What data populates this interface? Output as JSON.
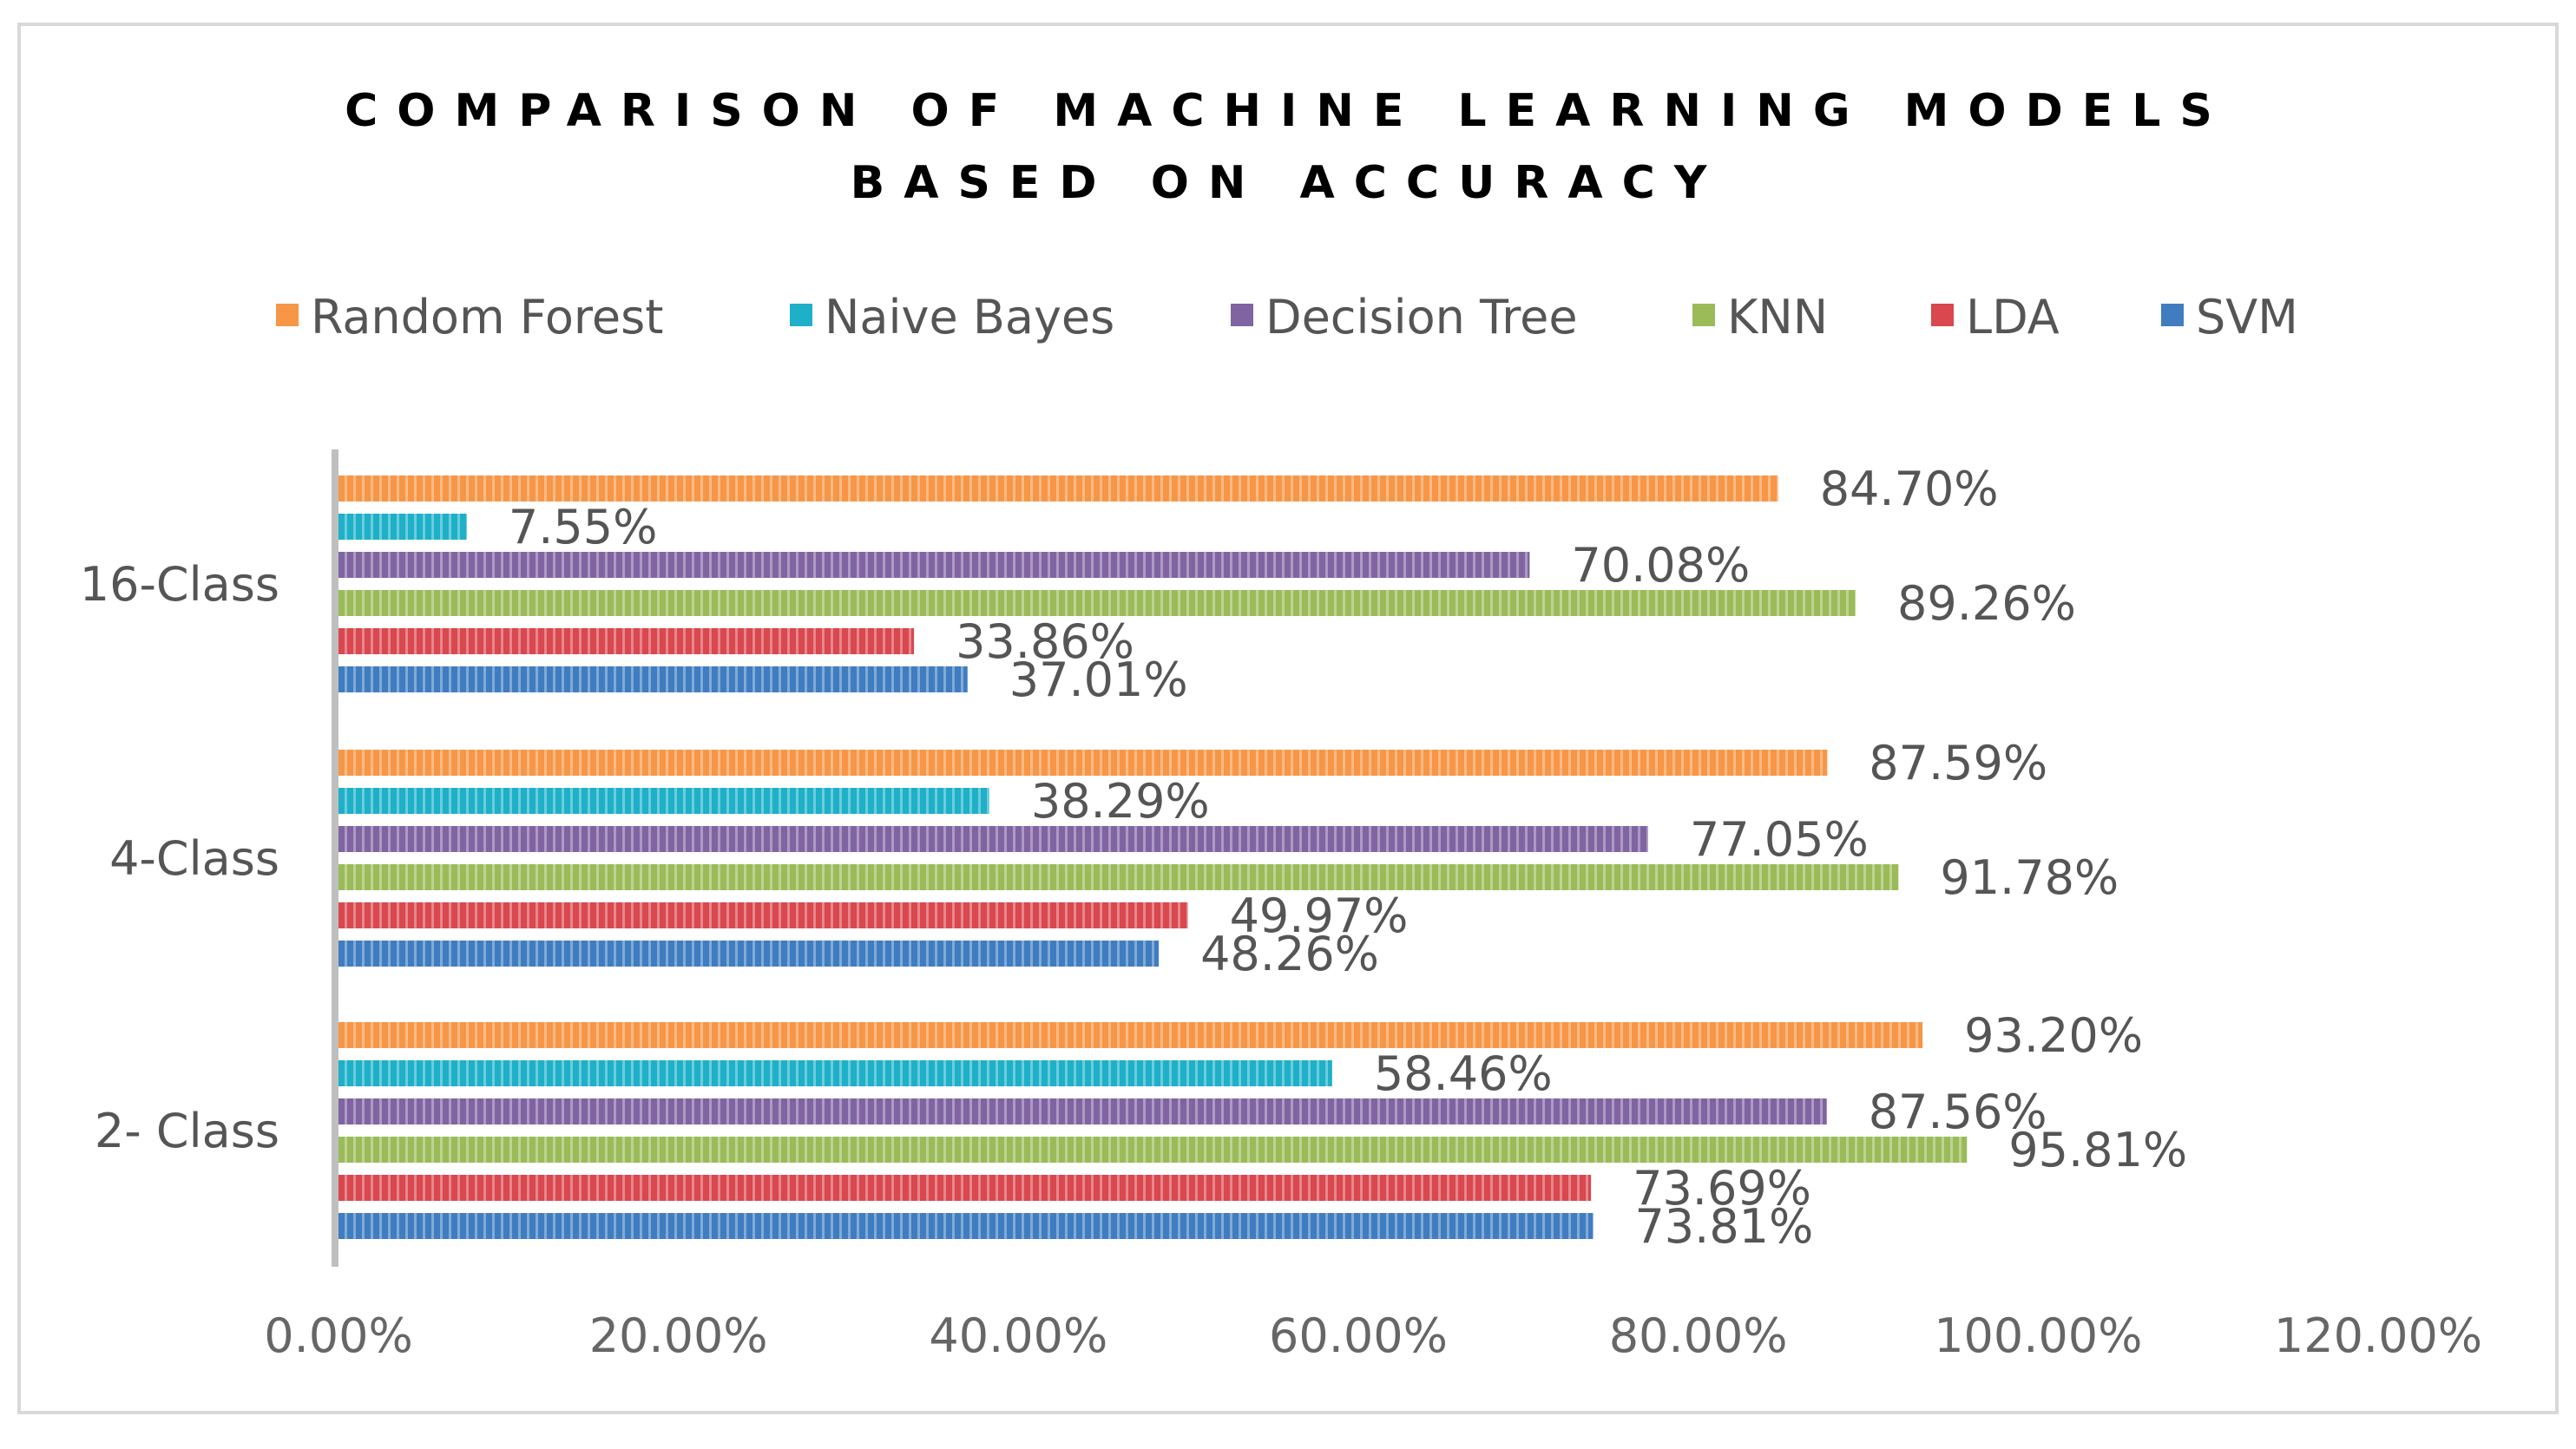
{
  "chart_data": {
    "type": "bar",
    "orientation": "horizontal",
    "title_lines": [
      "COMPARISON OF MACHINE LEARNING MODELS",
      "BASED ON ACCURACY"
    ],
    "categories": [
      "16-Class",
      "4-Class",
      "2- Class"
    ],
    "series": [
      {
        "name": "Random Forest",
        "color": "#F79646",
        "values": [
          84.7,
          87.59,
          93.2
        ],
        "labels": [
          "84.70%",
          "87.59%",
          "93.20%"
        ]
      },
      {
        "name": "Naive Bayes",
        "color": "#1EB0C8",
        "values": [
          7.55,
          38.29,
          58.46
        ],
        "labels": [
          "7.55%",
          "38.29%",
          "58.46%"
        ]
      },
      {
        "name": "Decision Tree",
        "color": "#8064A2",
        "values": [
          70.08,
          77.05,
          87.56
        ],
        "labels": [
          "70.08%",
          "77.05%",
          "87.56%"
        ]
      },
      {
        "name": "KNN",
        "color": "#9BBB59",
        "values": [
          89.26,
          91.78,
          95.81
        ],
        "labels": [
          "89.26%",
          "91.78%",
          "95.81%"
        ]
      },
      {
        "name": "LDA",
        "color": "#D9474F",
        "values": [
          33.86,
          49.97,
          73.69
        ],
        "labels": [
          "33.86%",
          "49.97%",
          "73.69%"
        ]
      },
      {
        "name": "SVM",
        "color": "#3F7DC0",
        "values": [
          37.01,
          48.26,
          73.81
        ],
        "labels": [
          "37.01%",
          "48.26%",
          "73.81%"
        ]
      }
    ],
    "x_ticks": [
      "0.00%",
      "20.00%",
      "40.00%",
      "60.00%",
      "80.00%",
      "100.00%",
      "120.00%"
    ],
    "xlim": [
      0,
      120
    ],
    "xlabel": "",
    "ylabel": "",
    "legend_position": "top",
    "grid": false
  }
}
